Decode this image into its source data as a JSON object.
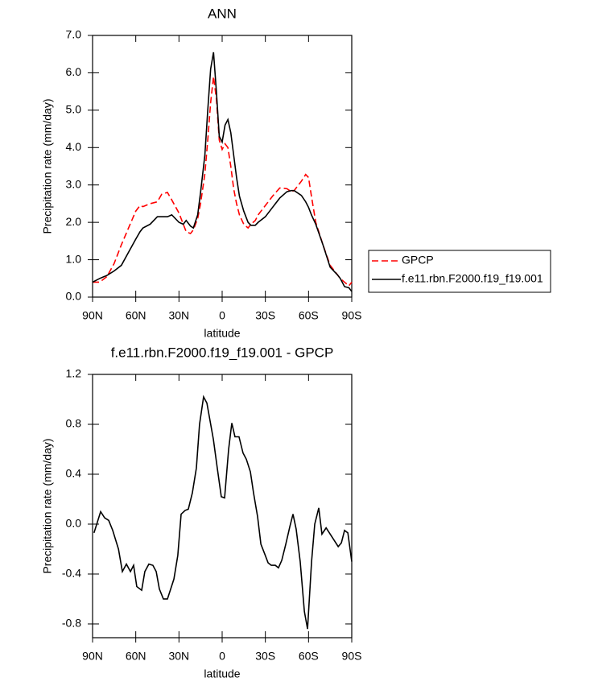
{
  "chart_data": [
    {
      "type": "line",
      "title": "ANN",
      "x_label": "latitude",
      "y_label": "Precipitation rate (mm/day)",
      "x": [
        90,
        85,
        80,
        75,
        70,
        65,
        60,
        57,
        55,
        50,
        45,
        42,
        38,
        35,
        30,
        27,
        25,
        22,
        20,
        17,
        15,
        12,
        10,
        8,
        6,
        4,
        2,
        0,
        -2,
        -4,
        -6,
        -8,
        -10,
        -12,
        -15,
        -18,
        -20,
        -23,
        -25,
        -30,
        -35,
        -40,
        -45,
        -48,
        -50,
        -55,
        -58,
        -60,
        -62,
        -65,
        -70,
        -75,
        -80,
        -82,
        -85,
        -88,
        -90
      ],
      "series": [
        {
          "name": "GPCP",
          "color": "#ff0000",
          "line_style": "dashed",
          "values": [
            0.4,
            0.4,
            0.55,
            0.9,
            1.4,
            1.85,
            2.3,
            2.45,
            2.42,
            2.5,
            2.55,
            2.75,
            2.8,
            2.6,
            2.25,
            1.95,
            1.75,
            1.7,
            1.8,
            2.1,
            2.5,
            3.3,
            4.2,
            5.2,
            5.9,
            5.3,
            4.2,
            3.95,
            4.1,
            4.0,
            3.5,
            2.9,
            2.5,
            2.2,
            1.95,
            1.85,
            1.95,
            2.05,
            2.2,
            2.45,
            2.7,
            2.92,
            2.9,
            2.82,
            2.85,
            3.1,
            3.28,
            3.2,
            2.7,
            2.0,
            1.4,
            0.85,
            0.6,
            0.5,
            0.4,
            0.3,
            0.4
          ]
        },
        {
          "name": "f.e11.rbn.F2000.f19_f19.001",
          "color": "#000000",
          "line_style": "solid",
          "values": [
            0.4,
            0.5,
            0.58,
            0.7,
            0.85,
            1.2,
            1.55,
            1.75,
            1.85,
            1.95,
            2.15,
            2.15,
            2.15,
            2.2,
            2.0,
            1.95,
            2.05,
            1.9,
            1.85,
            2.2,
            2.8,
            3.8,
            5.0,
            6.1,
            6.55,
            5.5,
            4.3,
            4.15,
            4.6,
            4.75,
            4.4,
            3.8,
            3.2,
            2.7,
            2.3,
            2.0,
            1.92,
            1.92,
            2.0,
            2.15,
            2.4,
            2.65,
            2.82,
            2.85,
            2.85,
            2.72,
            2.55,
            2.4,
            2.2,
            1.95,
            1.4,
            0.8,
            0.6,
            0.5,
            0.28,
            0.25,
            0.15
          ]
        }
      ],
      "xlim": [
        90,
        -90
      ],
      "xticks": [
        {
          "value": 90,
          "label": "90N"
        },
        {
          "value": 60,
          "label": "60N"
        },
        {
          "value": 30,
          "label": "30N"
        },
        0,
        {
          "value": -30,
          "label": "30S"
        },
        {
          "value": -60,
          "label": "60S"
        },
        {
          "value": -90,
          "label": "90S"
        }
      ],
      "ylim": [
        0,
        7
      ],
      "yticks": [
        {
          "value": 0,
          "label": "0.0"
        },
        {
          "value": 1,
          "label": "1.0"
        },
        {
          "value": 2,
          "label": "2.0"
        },
        {
          "value": 3,
          "label": "3.0"
        },
        {
          "value": 4,
          "label": "4.0"
        },
        {
          "value": 5,
          "label": "5.0"
        },
        {
          "value": 6,
          "label": "6.0"
        },
        {
          "value": 7,
          "label": "7.0"
        }
      ],
      "legend": "outside-right"
    },
    {
      "type": "line",
      "title": "f.e11.rbn.F2000.f19_f19.001 - GPCP",
      "x_label": "latitude",
      "y_label": "Precipitation rate (mm/day)",
      "x": [
        89,
        84.4,
        81.6,
        78.8,
        76,
        72,
        69.3,
        66.5,
        63.7,
        61.5,
        59.3,
        55.9,
        53.7,
        50.9,
        48.1,
        45.8,
        43.6,
        40.8,
        38,
        33.5,
        30.8,
        28.5,
        25.7,
        23.5,
        20.7,
        17.9,
        15.7,
        12.9,
        10.6,
        6.1,
        3.4,
        0.6,
        -1.7,
        -4.5,
        -6.7,
        -8.9,
        -11.7,
        -14.5,
        -16.8,
        -19.6,
        -21.8,
        -24.6,
        -26.9,
        -29.6,
        -31.9,
        -34.1,
        -36.9,
        -39.1,
        -41.4,
        -44.2,
        -47,
        -49.2,
        -51.4,
        -54.2,
        -57.1,
        -59.3,
        -62.1,
        -64.3,
        -67.1,
        -69.3,
        -72.2,
        -75,
        -77.8,
        -80.6,
        -82.8,
        -85,
        -87.3,
        -90
      ],
      "series": [
        {
          "color": "#000000",
          "line_style": "solid",
          "values": [
            -0.07,
            0.1,
            0.05,
            0.03,
            -0.05,
            -0.2,
            -0.38,
            -0.32,
            -0.38,
            -0.33,
            -0.5,
            -0.53,
            -0.38,
            -0.32,
            -0.33,
            -0.38,
            -0.52,
            -0.6,
            -0.6,
            -0.44,
            -0.25,
            0.08,
            0.11,
            0.12,
            0.25,
            0.45,
            0.8,
            1.02,
            0.97,
            0.68,
            0.45,
            0.22,
            0.21,
            0.6,
            0.81,
            0.7,
            0.7,
            0.57,
            0.52,
            0.42,
            0.25,
            0.06,
            -0.16,
            -0.24,
            -0.31,
            -0.33,
            -0.33,
            -0.35,
            -0.29,
            -0.16,
            -0.02,
            0.08,
            -0.04,
            -0.3,
            -0.7,
            -0.84,
            -0.3,
            0.0,
            0.13,
            -0.08,
            -0.03,
            -0.08,
            -0.13,
            -0.18,
            -0.15,
            -0.05,
            -0.07,
            -0.3
          ]
        }
      ],
      "xlim": [
        90,
        -90
      ],
      "xticks": [
        {
          "value": 90,
          "label": "90N"
        },
        {
          "value": 60,
          "label": "60N"
        },
        {
          "value": 30,
          "label": "30N"
        },
        0,
        {
          "value": -30,
          "label": "30S"
        },
        {
          "value": -60,
          "label": "60S"
        },
        {
          "value": -90,
          "label": "90S"
        }
      ],
      "ylim": [
        -0.91,
        1.2
      ],
      "yticks": [
        {
          "value": -0.8,
          "label": "-0.8"
        },
        {
          "value": -0.4,
          "label": "-0.4"
        },
        {
          "value": 0,
          "label": "0.0"
        },
        {
          "value": 0.4,
          "label": "0.4"
        },
        {
          "value": 0.8,
          "label": "0.8"
        },
        {
          "value": 1.2,
          "label": "1.2"
        }
      ]
    }
  ]
}
